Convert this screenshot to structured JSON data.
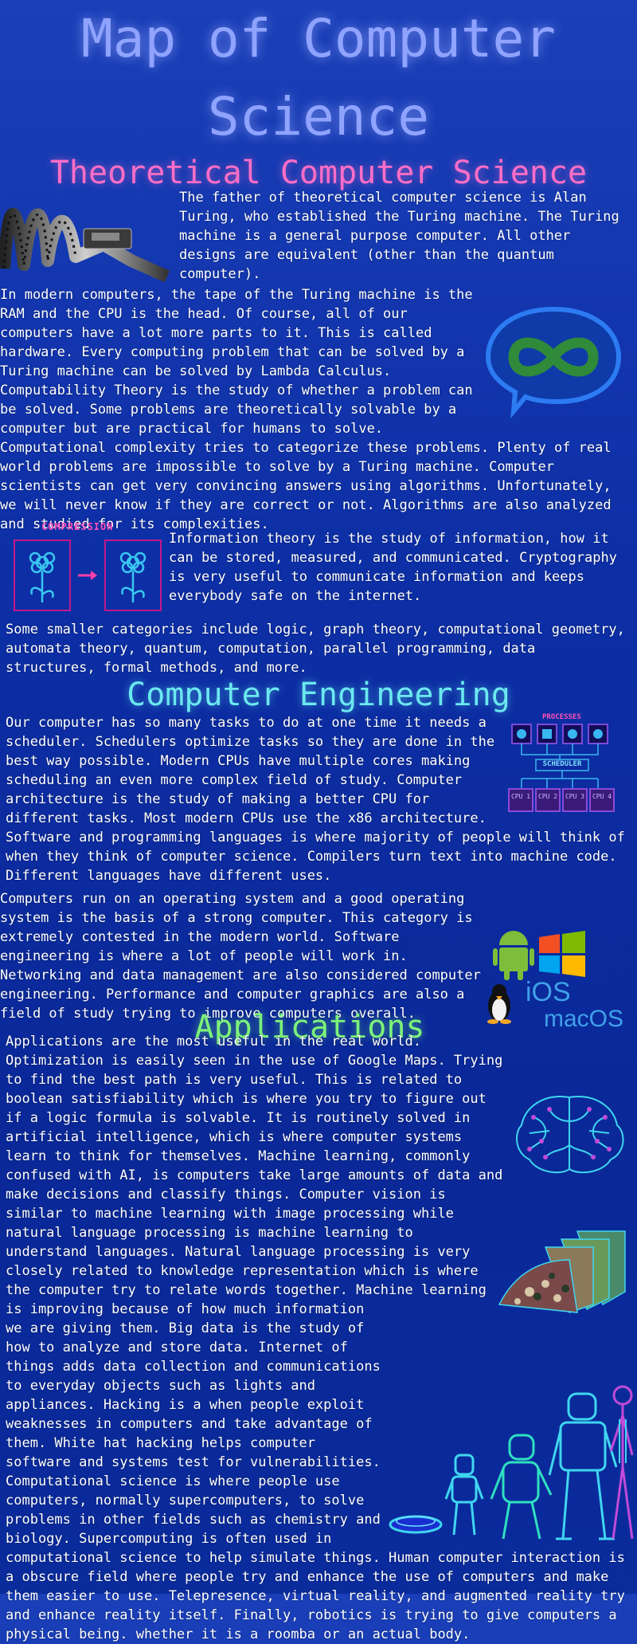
{
  "title": "Map of Computer Science",
  "sections": {
    "theoretical": {
      "heading": "Theoretical Computer Science",
      "p1": "The father of theoretical computer science is Alan Turing, who established the Turing machine. The Turing machine is a general purpose computer. All other designs are equivalent (other than the quantum computer).",
      "p2": "In modern computers, the tape of the Turing machine is the RAM and the CPU is the head. Of course, all of our computers have a lot more parts to it. This is called hardware. Every computing problem that can be solved by a Turing machine can be solved by Lambda Calculus. Computability Theory is the study of whether a problem can be solved. Some problems are theoretically solvable by a computer but are practical for humans to solve. Computational complexity tries to categorize these problems. Plenty of real world problems are impossible to solve by a Turing machine. Computer scientists can get very convincing answers using algorithms. Unfortunately, we will never know if they are correct or not. Algorithms are also analyzed and studied for its complexities.",
      "compression_label": "COMPRESSION",
      "p3": "Information theory is the study of information, how it can be stored, measured, and communicated. Cryptography is very useful to communicate information and keeps everybody safe on the internet.",
      "p4": "Some smaller categories include logic, graph theory, computational geometry, automata theory, quantum, computation, parallel programming, data structures, formal methods, and more."
    },
    "engineering": {
      "heading": "Computer Engineering",
      "processes_label": "PROCESSES",
      "scheduler_label": "SCHEDULER",
      "cpus": [
        "CPU 1",
        "CPU 2",
        "CPU 3",
        "CPU 4"
      ],
      "p1": "Our computer has so many tasks to do at one time it needs a scheduler. Schedulers optimize tasks so they are done in the best way possible. Modern CPUs have multiple cores making scheduling an even more complex field of study. Computer architecture is the study of making a better CPU for different tasks. Most modern CPUs use the x86 architecture. Software and programming languages is where majority of people will think of when they think of computer science. Compilers turn text into machine code. Different languages have different uses.",
      "p2": "Computers run on an operating system and a good operating system is the basis of a strong computer. This category is extremely contested in the modern world. Software engineering is where a lot of people will work in. Networking and data management are also considered computer engineering. Performance and computer graphics are also a field of study trying to improve computers overall.",
      "os_labels": {
        "ios": "iOS",
        "macos": "macOS"
      }
    },
    "applications": {
      "heading": "Applications",
      "p1": "Applications are the most useful in the real world. Optimization is easily seen in the use of Google Maps. Trying to find the best path is very useful. This is related to boolean satisfiability which is where you try to figure out if a logic formula is solvable. It is routinely solved in artificial intelligence, which is where computer systems learn to think for themselves. Machine learning, commonly confused with AI, is computers take large amounts of data and make decisions and classify things. Computer vision is similar to machine learning with image processing while natural language processing is machine learning to understand languages. Natural language processing is very closely related to knowledge representation which is where the computer try to relate words together. Machine learning is improving because of how much information we are giving them. Big data is the study of how to analyze and store data. Internet of things adds data collection and communications to everyday objects such as lights and appliances. Hacking is a when people exploit weaknesses in computers and take advantage of them. White hat hacking helps computer software and systems test for vulnerabilities. Computational science is where people use computers, normally supercomputers, to solve problems in other fields such as chemistry and biology. Supercomputing is often used in computational science to help simulate things. Human computer interaction is a obscure field where people try and enhance the use of computers and make them easier to use. Telepresence, virtual reality, and augmented reality try and enhance reality itself. Finally, robotics is trying to give computers a physical being. whether it is a roomba or an actual body."
    }
  },
  "colors": {
    "background": "#1436ac",
    "title": "#8fa3ff",
    "theoretical_heading": "#ff6ec7",
    "engineering_heading": "#6be8f0",
    "applications_heading": "#7cf27a"
  }
}
